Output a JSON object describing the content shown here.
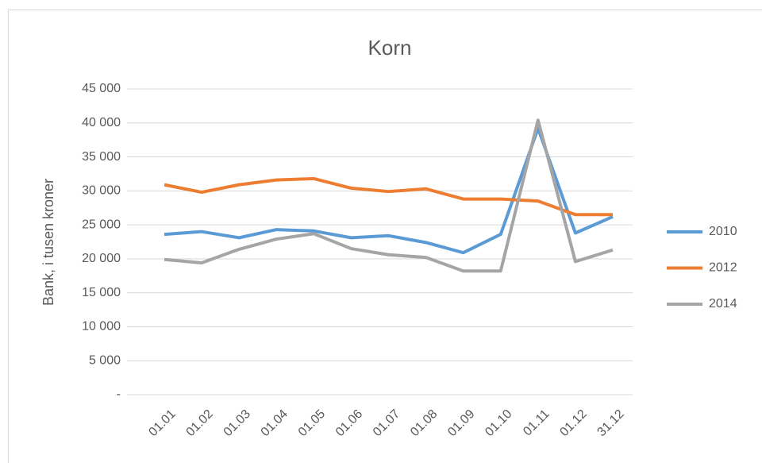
{
  "chart_data": {
    "type": "line",
    "title": "Korn",
    "y_label": "Bank, i tusen kroner",
    "categories": [
      "01.01",
      "01.02",
      "01.03",
      "01.04",
      "01.05",
      "01.06",
      "01.07",
      "01.08",
      "01.09",
      "01.10",
      "01.11",
      "01.12",
      "31.12"
    ],
    "series": [
      {
        "name": "2010",
        "color": "#5b9bd5",
        "values": [
          23600,
          24000,
          23100,
          24300,
          24100,
          23100,
          23400,
          22400,
          20900,
          23600,
          39200,
          23800,
          26200
        ]
      },
      {
        "name": "2012",
        "color": "#ed7d31",
        "values": [
          30900,
          29800,
          30900,
          31600,
          31800,
          30400,
          29900,
          30300,
          28800,
          28800,
          28500,
          26500,
          26500
        ]
      },
      {
        "name": "2014",
        "color": "#a5a5a5",
        "values": [
          19900,
          19400,
          21400,
          22900,
          23700,
          21500,
          20600,
          20200,
          18200,
          18200,
          40400,
          19600,
          21300
        ]
      }
    ],
    "ylim": [
      0,
      45000
    ],
    "yticks": [
      {
        "value": 0,
        "label": "-"
      },
      {
        "value": 5000,
        "label": "5 000"
      },
      {
        "value": 10000,
        "label": "10 000"
      },
      {
        "value": 15000,
        "label": "15 000"
      },
      {
        "value": 20000,
        "label": "20 000"
      },
      {
        "value": 25000,
        "label": "25 000"
      },
      {
        "value": 30000,
        "label": "30 000"
      },
      {
        "value": 35000,
        "label": "35 000"
      },
      {
        "value": 40000,
        "label": "40 000"
      },
      {
        "value": 45000,
        "label": "45 000"
      }
    ],
    "grid": true,
    "legend": "right"
  }
}
